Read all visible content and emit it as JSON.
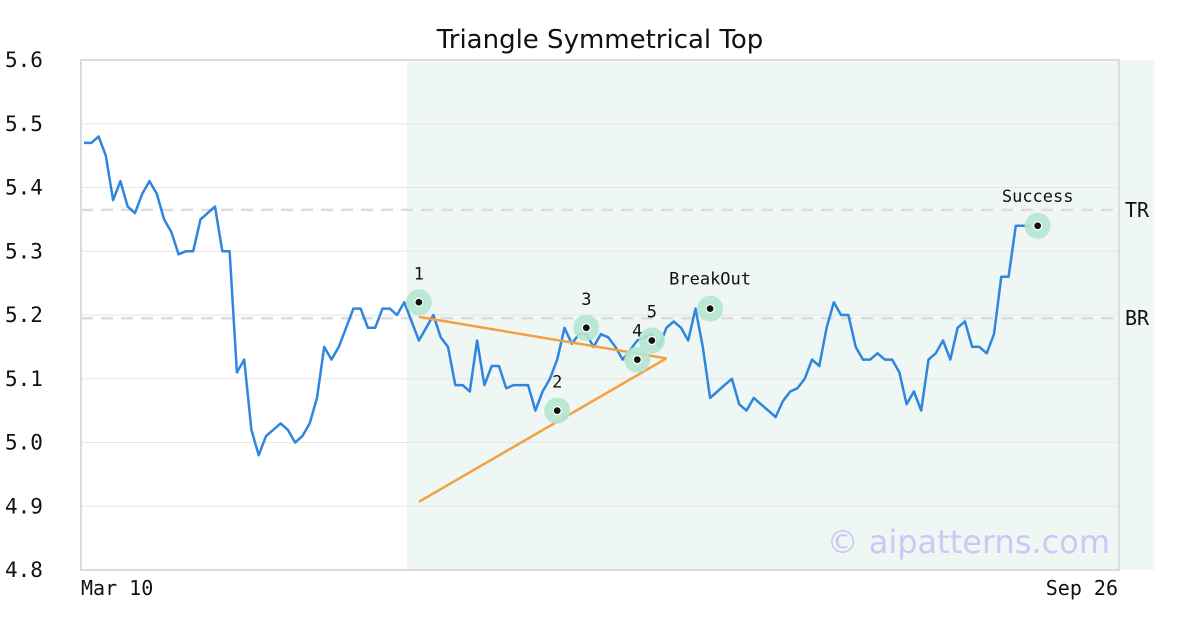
{
  "chart_data": {
    "type": "line",
    "title": "Triangle Symmetrical Top",
    "xlabel": "",
    "ylabel": "",
    "ylim": [
      4.8,
      5.6
    ],
    "yticks": [
      "4.8",
      "4.9",
      "5.0",
      "5.1",
      "5.2",
      "5.3",
      "5.4",
      "5.5",
      "5.6"
    ],
    "xtick_labels": [
      "Mar 10",
      "Sep 26"
    ],
    "grid": true,
    "line_color": "#2e86de",
    "series": [
      {
        "values": [
          5.47,
          5.47,
          5.48,
          5.45,
          5.38,
          5.41,
          5.37,
          5.36,
          5.39,
          5.41,
          5.39,
          5.35,
          5.33,
          5.295,
          5.3,
          5.3,
          5.35,
          5.36,
          5.37,
          5.3,
          5.3,
          5.11,
          5.13,
          5.02,
          4.98,
          5.01,
          5.02,
          5.03,
          5.02,
          5.0,
          5.01,
          5.03,
          5.07,
          5.15,
          5.13,
          5.15,
          5.18,
          5.21,
          5.21,
          5.18,
          5.18,
          5.21,
          5.21,
          5.2,
          5.22,
          5.19,
          5.16,
          5.18,
          5.2,
          5.165,
          5.15,
          5.09,
          5.09,
          5.08,
          5.16,
          5.09,
          5.12,
          5.12,
          5.085,
          5.09,
          5.09,
          5.09,
          5.05,
          5.08,
          5.1,
          5.13,
          5.18,
          5.155,
          5.17,
          5.17,
          5.15,
          5.17,
          5.165,
          5.15,
          5.13,
          5.145,
          5.16,
          5.165,
          5.17,
          5.15,
          5.18,
          5.19,
          5.18,
          5.16,
          5.21,
          5.15,
          5.07,
          5.08,
          5.09,
          5.1,
          5.06,
          5.05,
          5.07,
          5.06,
          5.05,
          5.04,
          5.065,
          5.08,
          5.085,
          5.1,
          5.13,
          5.12,
          5.18,
          5.22,
          5.2,
          5.2,
          5.15,
          5.13,
          5.13,
          5.14,
          5.13,
          5.13,
          5.11,
          5.06,
          5.08,
          5.05,
          5.13,
          5.14,
          5.16,
          5.13,
          5.18,
          5.19,
          5.15,
          5.15,
          5.14,
          5.17,
          5.26,
          5.26,
          5.34,
          5.34,
          5.34
        ]
      }
    ],
    "highlight_region": {
      "start_index": 46,
      "end_index": 147,
      "color": "#eef7f3"
    },
    "reference_lines": [
      {
        "label": "TR",
        "value": 5.365
      },
      {
        "label": "BR",
        "value": 5.195
      }
    ],
    "points": [
      {
        "label": "1",
        "index": 46,
        "value": 5.22
      },
      {
        "label": "2",
        "index": 65,
        "value": 5.05
      },
      {
        "label": "3",
        "index": 69,
        "value": 5.18
      },
      {
        "label": "4",
        "index": 76,
        "value": 5.13
      },
      {
        "label": "5",
        "index": 78,
        "value": 5.16
      },
      {
        "label": "BreakOut",
        "index": 86,
        "value": 5.21
      },
      {
        "label": "Success",
        "index": 131,
        "value": 5.34
      }
    ],
    "trendlines": [
      {
        "start_index": 46,
        "start_value": 5.197,
        "end_index": 80,
        "end_value": 5.132
      },
      {
        "start_index": 46,
        "start_value": 4.907,
        "end_index": 80,
        "end_value": 5.132
      }
    ],
    "trendline_color": "#f4a040",
    "marker_color": "#b5e6d0",
    "watermark": "© aipatterns.com"
  }
}
